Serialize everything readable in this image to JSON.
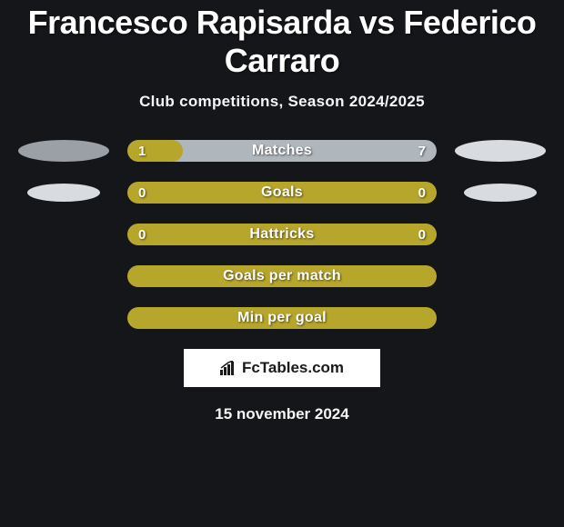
{
  "title": "Francesco Rapisarda vs Federico Carraro",
  "subtitle": "Club competitions, Season 2024/2025",
  "colors": {
    "page_bg": "#15161a",
    "ellipse_a": "#9aa0a6",
    "ellipse_b": "#d8dce0",
    "bar_fill": "#b7a62c",
    "bar_bg_olive": "#b7a62c",
    "bar_bg_gray": "#afb6bc",
    "text": "#ffffff"
  },
  "rows": [
    {
      "label": "Matches",
      "left_val": "1",
      "right_val": "7",
      "fill_pct": 18,
      "bg_color": "#afb6bc",
      "fill_color": "#b7a62c",
      "ellipse_left": {
        "w": 100,
        "h": 24,
        "color": "#9aa0a6"
      },
      "ellipse_right": {
        "w": 100,
        "h": 24,
        "color": "#d8dce0"
      },
      "show_vals": true
    },
    {
      "label": "Goals",
      "left_val": "0",
      "right_val": "0",
      "fill_pct": 100,
      "bg_color": "#b7a62c",
      "fill_color": "#b7a62c",
      "ellipse_left": {
        "w": 80,
        "h": 20,
        "color": "#d8dce0"
      },
      "ellipse_right": {
        "w": 80,
        "h": 20,
        "color": "#d8dce0"
      },
      "show_vals": true
    },
    {
      "label": "Hattricks",
      "left_val": "0",
      "right_val": "0",
      "fill_pct": 100,
      "bg_color": "#b7a62c",
      "fill_color": "#b7a62c",
      "ellipse_left": null,
      "ellipse_right": null,
      "show_vals": true
    },
    {
      "label": "Goals per match",
      "left_val": "",
      "right_val": "",
      "fill_pct": 100,
      "bg_color": "#b7a62c",
      "fill_color": "#b7a62c",
      "ellipse_left": null,
      "ellipse_right": null,
      "show_vals": false
    },
    {
      "label": "Min per goal",
      "left_val": "",
      "right_val": "",
      "fill_pct": 100,
      "bg_color": "#b7a62c",
      "fill_color": "#b7a62c",
      "ellipse_left": null,
      "ellipse_right": null,
      "show_vals": false
    }
  ],
  "logo_text": "FcTables.com",
  "date": "15 november 2024"
}
